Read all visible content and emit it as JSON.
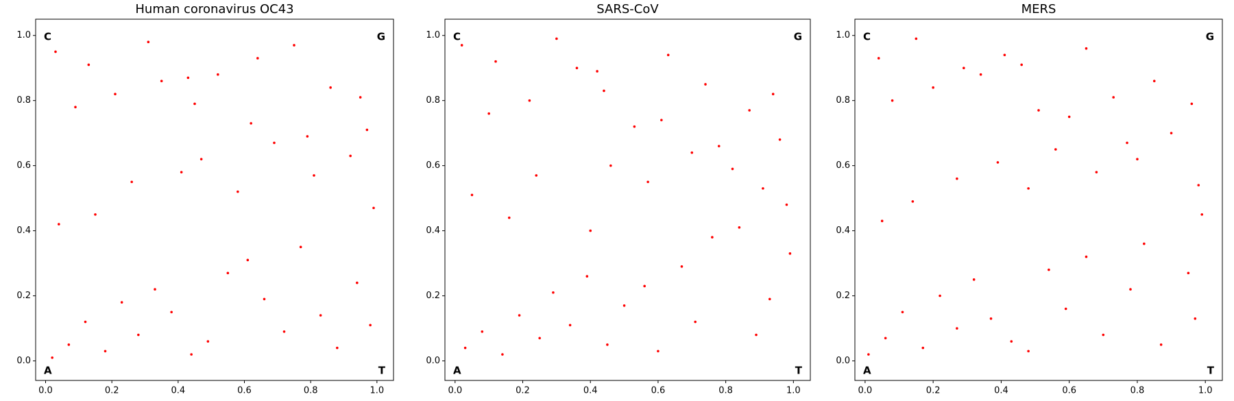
{
  "chart_data": [
    {
      "type": "scatter",
      "title": "Human coronavirus OC43",
      "color": "#ff0000",
      "corner_labels": [
        "C",
        "G",
        "A",
        "T"
      ],
      "x": [
        0.02,
        0.07,
        0.12,
        0.18,
        0.23,
        0.28,
        0.33,
        0.38,
        0.44,
        0.49,
        0.55,
        0.61,
        0.66,
        0.72,
        0.77,
        0.83,
        0.88,
        0.94,
        0.98,
        0.04,
        0.15,
        0.26,
        0.41,
        0.47,
        0.58,
        0.69,
        0.81,
        0.92,
        0.97,
        0.09,
        0.21,
        0.35,
        0.45,
        0.52,
        0.64,
        0.75,
        0.86,
        0.95,
        0.03,
        0.13,
        0.31,
        0.43,
        0.62,
        0.79,
        0.99
      ],
      "y": [
        0.01,
        0.05,
        0.12,
        0.03,
        0.18,
        0.08,
        0.22,
        0.15,
        0.02,
        0.06,
        0.27,
        0.31,
        0.19,
        0.09,
        0.35,
        0.14,
        0.04,
        0.24,
        0.11,
        0.42,
        0.45,
        0.55,
        0.58,
        0.62,
        0.52,
        0.67,
        0.57,
        0.63,
        0.71,
        0.78,
        0.82,
        0.86,
        0.79,
        0.88,
        0.93,
        0.97,
        0.84,
        0.81,
        0.95,
        0.91,
        0.98,
        0.87,
        0.73,
        0.69,
        0.47
      ],
      "xlim": [
        -0.03,
        1.05
      ],
      "ylim": [
        -0.06,
        1.05
      ],
      "xticks": [
        {
          "value": 0,
          "label": "0.0"
        },
        {
          "value": 0.2,
          "label": "0.2"
        },
        {
          "value": 0.4,
          "label": "0.4"
        },
        {
          "value": 0.6,
          "label": "0.6"
        },
        {
          "value": 0.8,
          "label": "0.8"
        },
        {
          "value": 1,
          "label": "1.0"
        }
      ],
      "yticks": [
        {
          "value": 0,
          "label": "0.0"
        },
        {
          "value": 0.2,
          "label": "0.2"
        },
        {
          "value": 0.4,
          "label": "0.4"
        },
        {
          "value": 0.6,
          "label": "0.6"
        },
        {
          "value": 0.8,
          "label": "0.8"
        },
        {
          "value": 1,
          "label": "1.0"
        }
      ]
    },
    {
      "type": "scatter",
      "title": "SARS-CoV",
      "color": "#ff0000",
      "corner_labels": [
        "C",
        "G",
        "A",
        "T"
      ],
      "x": [
        0.03,
        0.08,
        0.14,
        0.19,
        0.25,
        0.29,
        0.34,
        0.39,
        0.45,
        0.5,
        0.56,
        0.6,
        0.67,
        0.71,
        0.76,
        0.84,
        0.89,
        0.93,
        0.99,
        0.05,
        0.16,
        0.24,
        0.4,
        0.46,
        0.57,
        0.7,
        0.82,
        0.91,
        0.96,
        0.1,
        0.22,
        0.36,
        0.44,
        0.53,
        0.63,
        0.74,
        0.87,
        0.94,
        0.02,
        0.12,
        0.3,
        0.42,
        0.61,
        0.78,
        0.98
      ],
      "y": [
        0.04,
        0.09,
        0.02,
        0.14,
        0.07,
        0.21,
        0.11,
        0.26,
        0.05,
        0.17,
        0.23,
        0.03,
        0.29,
        0.12,
        0.38,
        0.41,
        0.08,
        0.19,
        0.33,
        0.51,
        0.44,
        0.57,
        0.4,
        0.6,
        0.55,
        0.64,
        0.59,
        0.53,
        0.68,
        0.76,
        0.8,
        0.9,
        0.83,
        0.72,
        0.94,
        0.85,
        0.77,
        0.82,
        0.97,
        0.92,
        0.99,
        0.89,
        0.74,
        0.66,
        0.48
      ],
      "xlim": [
        -0.03,
        1.05
      ],
      "ylim": [
        -0.06,
        1.05
      ],
      "xticks": [
        {
          "value": 0,
          "label": "0.0"
        },
        {
          "value": 0.2,
          "label": "0.2"
        },
        {
          "value": 0.4,
          "label": "0.4"
        },
        {
          "value": 0.6,
          "label": "0.6"
        },
        {
          "value": 0.8,
          "label": "0.8"
        },
        {
          "value": 1,
          "label": "1.0"
        }
      ],
      "yticks": [
        {
          "value": 0,
          "label": "0.0"
        },
        {
          "value": 0.2,
          "label": "0.2"
        },
        {
          "value": 0.4,
          "label": "0.4"
        },
        {
          "value": 0.6,
          "label": "0.6"
        },
        {
          "value": 0.8,
          "label": "0.8"
        },
        {
          "value": 1,
          "label": "1.0"
        }
      ]
    },
    {
      "type": "scatter",
      "title": "MERS",
      "color": "#ff0000",
      "corner_labels": [
        "C",
        "G",
        "A",
        "T"
      ],
      "x": [
        0.01,
        0.06,
        0.11,
        0.17,
        0.22,
        0.27,
        0.32,
        0.37,
        0.43,
        0.48,
        0.54,
        0.59,
        0.65,
        0.7,
        0.78,
        0.82,
        0.87,
        0.95,
        0.97,
        0.05,
        0.14,
        0.27,
        0.39,
        0.48,
        0.56,
        0.68,
        0.8,
        0.9,
        0.98,
        0.08,
        0.2,
        0.34,
        0.46,
        0.51,
        0.65,
        0.73,
        0.85,
        0.96,
        0.04,
        0.15,
        0.29,
        0.41,
        0.6,
        0.77,
        0.99
      ],
      "y": [
        0.02,
        0.07,
        0.15,
        0.04,
        0.2,
        0.1,
        0.25,
        0.13,
        0.06,
        0.03,
        0.28,
        0.16,
        0.32,
        0.08,
        0.22,
        0.36,
        0.05,
        0.27,
        0.13,
        0.43,
        0.49,
        0.56,
        0.61,
        0.53,
        0.65,
        0.58,
        0.62,
        0.7,
        0.54,
        0.8,
        0.84,
        0.88,
        0.91,
        0.77,
        0.96,
        0.81,
        0.86,
        0.79,
        0.93,
        0.99,
        0.9,
        0.94,
        0.75,
        0.67,
        0.45
      ],
      "xlim": [
        -0.03,
        1.05
      ],
      "ylim": [
        -0.06,
        1.05
      ],
      "xticks": [
        {
          "value": 0,
          "label": "0.0"
        },
        {
          "value": 0.2,
          "label": "0.2"
        },
        {
          "value": 0.4,
          "label": "0.4"
        },
        {
          "value": 0.6,
          "label": "0.6"
        },
        {
          "value": 0.8,
          "label": "0.8"
        },
        {
          "value": 1,
          "label": "1.0"
        }
      ],
      "yticks": [
        {
          "value": 0,
          "label": "0.0"
        },
        {
          "value": 0.2,
          "label": "0.2"
        },
        {
          "value": 0.4,
          "label": "0.4"
        },
        {
          "value": 0.6,
          "label": "0.6"
        },
        {
          "value": 0.8,
          "label": "0.8"
        },
        {
          "value": 1,
          "label": "1.0"
        }
      ]
    }
  ]
}
